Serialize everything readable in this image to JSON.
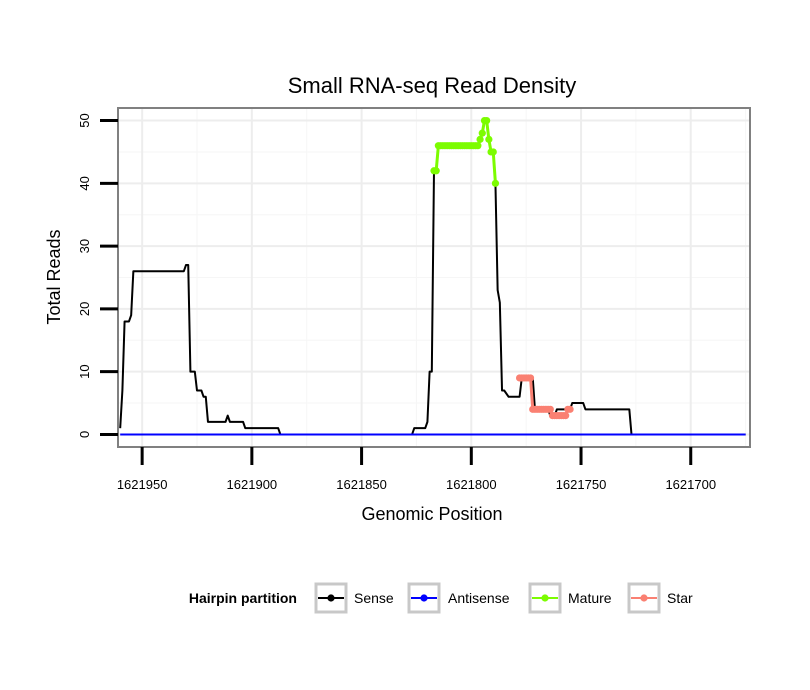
{
  "chart_data": {
    "type": "line",
    "title": "Small RNA-seq Read Density",
    "xlabel": "Genomic Position",
    "ylabel": "Total Reads",
    "x_reversed": true,
    "xlim": [
      1621961,
      1621673
    ],
    "ylim": [
      -2,
      52
    ],
    "x_ticks": [
      1621950,
      1621900,
      1621850,
      1621800,
      1621750,
      1621700
    ],
    "x_tick_labels": [
      "1621950",
      "1621900",
      "1621850",
      "1621800",
      "1621750",
      "1621700"
    ],
    "y_ticks": [
      0,
      10,
      20,
      30,
      40,
      50
    ],
    "y_tick_labels": [
      "0",
      "10",
      "20",
      "30",
      "40",
      "50"
    ],
    "grid": true,
    "legend": {
      "title": "Hairpin partition",
      "position": "bottom",
      "entries": [
        {
          "name": "Sense",
          "color": "#000000"
        },
        {
          "name": "Antisense",
          "color": "#0000ff"
        },
        {
          "name": "Mature",
          "color": "#7cfc00"
        },
        {
          "name": "Star",
          "color": "#fa8072"
        }
      ]
    },
    "series": [
      {
        "name": "Sense",
        "color": "#000000",
        "marker": false,
        "x": [
          1621960,
          1621959,
          1621958,
          1621957,
          1621956,
          1621955,
          1621954,
          1621953,
          1621952,
          1621951,
          1621940,
          1621931,
          1621930,
          1621929,
          1621928,
          1621927,
          1621926,
          1621925,
          1621923,
          1621922,
          1621921,
          1621920,
          1621919,
          1621918,
          1621917,
          1621912,
          1621911,
          1621910,
          1621905,
          1621904,
          1621903,
          1621902,
          1621895,
          1621894,
          1621888,
          1621887,
          1621880,
          1621873,
          1621872,
          1621860,
          1621840,
          1621827,
          1621826,
          1621822,
          1621821,
          1621820,
          1621819,
          1621818,
          1621817,
          1621816,
          1621815,
          1621813,
          1621812,
          1621811,
          1621810,
          1621800,
          1621798,
          1621797,
          1621796,
          1621795,
          1621794,
          1621793,
          1621792,
          1621791,
          1621790,
          1621789,
          1621788,
          1621787,
          1621786,
          1621785,
          1621783,
          1621778,
          1621777,
          1621773,
          1621772,
          1621771,
          1621770,
          1621765,
          1621764,
          1621763,
          1621762,
          1621761,
          1621760,
          1621755,
          1621754,
          1621749,
          1621748,
          1621747,
          1621746,
          1621744,
          1621743,
          1621738,
          1621737,
          1621728,
          1621727,
          1621700,
          1621675
        ],
        "y": [
          1,
          7,
          18,
          18,
          18,
          19,
          26,
          26,
          26,
          26,
          26,
          26,
          27,
          27,
          10,
          10,
          10,
          7,
          7,
          6,
          6,
          2,
          2,
          2,
          2,
          2,
          3,
          2,
          2,
          2,
          1,
          1,
          1,
          1,
          1,
          0,
          0,
          0,
          0,
          0,
          0,
          0,
          1,
          1,
          1,
          2,
          10,
          10,
          42,
          42,
          46,
          46,
          46,
          46,
          46,
          46,
          46,
          46,
          47,
          48,
          50,
          50,
          47,
          45,
          45,
          40,
          23,
          21,
          7,
          7,
          6,
          6,
          9,
          9,
          9,
          4,
          4,
          4,
          3,
          3,
          3,
          4,
          4,
          4,
          5,
          5,
          4,
          4,
          4,
          4,
          4,
          4,
          4,
          4,
          0,
          0,
          0
        ]
      },
      {
        "name": "Antisense",
        "color": "#0000ff",
        "marker": false,
        "x": [
          1621960,
          1621675
        ],
        "y": [
          0,
          0
        ]
      },
      {
        "name": "Mature",
        "color": "#7cfc00",
        "marker": true,
        "x": [
          1621817,
          1621816,
          1621815,
          1621814,
          1621813,
          1621812,
          1621811,
          1621810,
          1621809,
          1621808,
          1621807,
          1621806,
          1621805,
          1621804,
          1621803,
          1621802,
          1621801,
          1621800,
          1621799,
          1621798,
          1621797,
          1621796,
          1621795,
          1621794,
          1621793,
          1621792,
          1621791,
          1621790,
          1621789
        ],
        "y": [
          42,
          42,
          46,
          46,
          46,
          46,
          46,
          46,
          46,
          46,
          46,
          46,
          46,
          46,
          46,
          46,
          46,
          46,
          46,
          46,
          46,
          47,
          48,
          50,
          50,
          47,
          45,
          45,
          40
        ]
      },
      {
        "name": "Star",
        "color": "#fa8072",
        "marker": true,
        "x": [
          1621778,
          1621777,
          1621776,
          1621775,
          1621774,
          1621773,
          1621772,
          1621771,
          1621770,
          1621769,
          1621768,
          1621767,
          1621766,
          1621765,
          1621764,
          1621763,
          1621762,
          1621761,
          1621760,
          1621759,
          1621758,
          1621757,
          1621756,
          1621755
        ],
        "y": [
          9,
          9,
          9,
          9,
          9,
          9,
          4,
          4,
          4,
          4,
          4,
          4,
          4,
          4,
          4,
          3,
          3,
          3,
          3,
          3,
          3,
          3,
          4,
          4
        ]
      }
    ]
  }
}
